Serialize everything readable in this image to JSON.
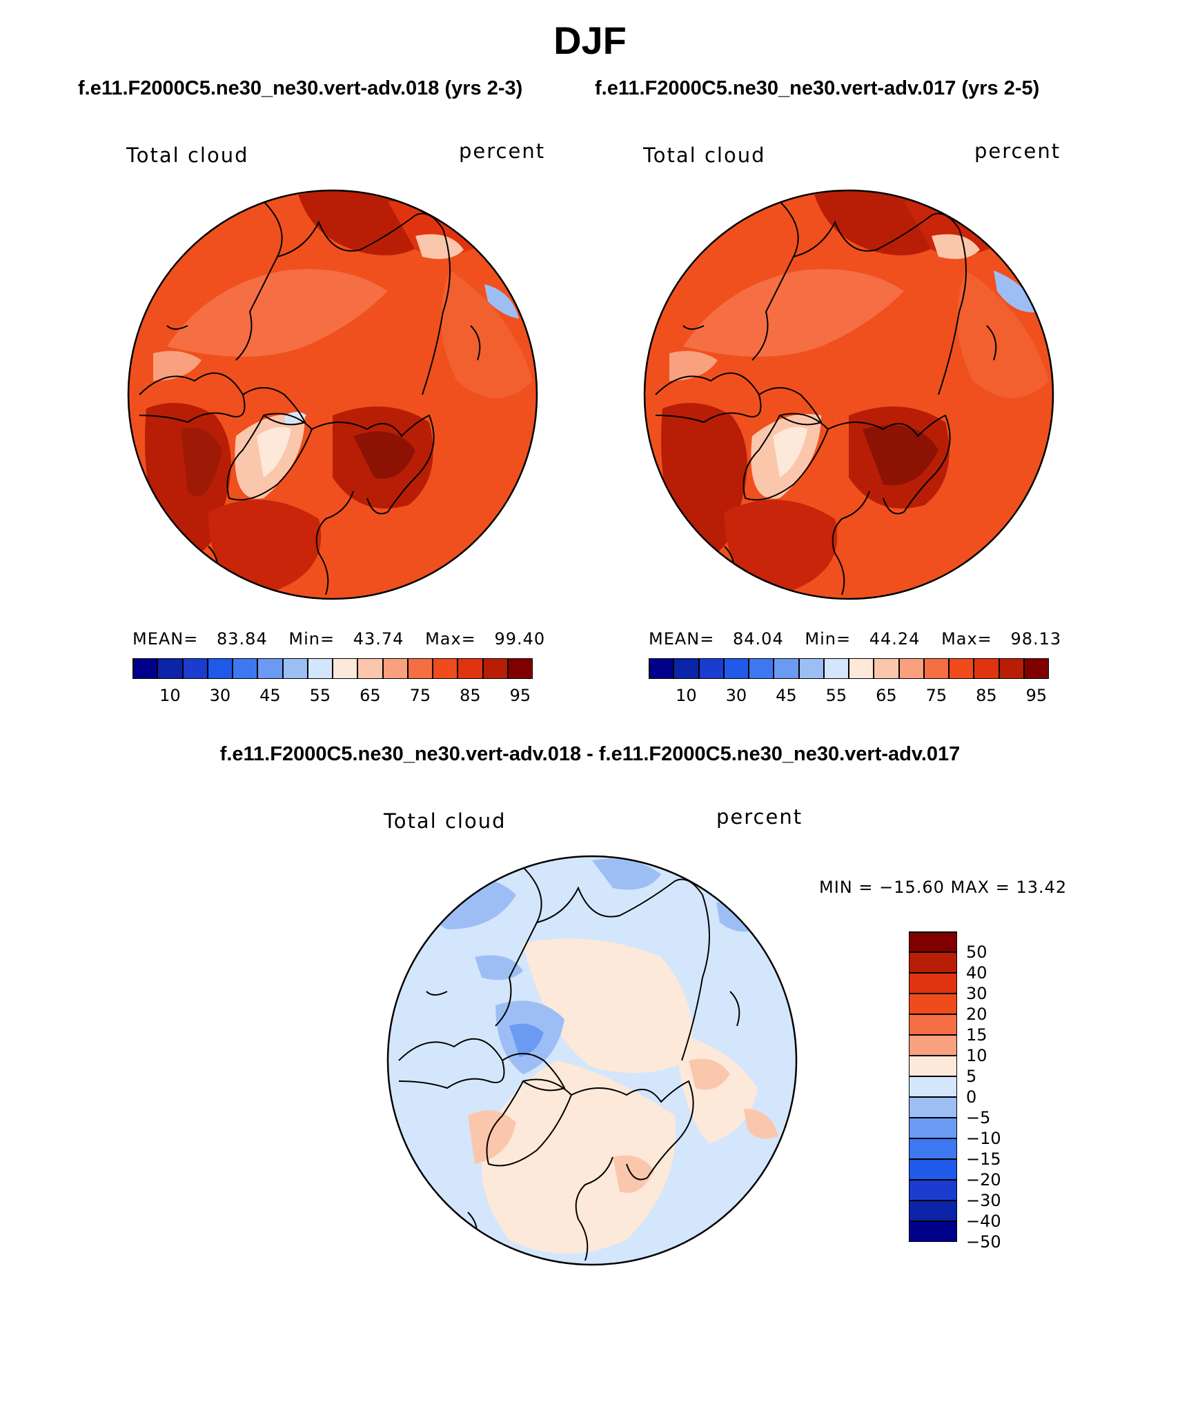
{
  "figure": {
    "season": "DJF",
    "case_titles": [
      "f.e11.F2000C5.ne30_ne30.vert-adv.018 (yrs 2-3)",
      "f.e11.F2000C5.ne30_ne30.vert-adv.017 (yrs 2-5)"
    ],
    "diff_title": "f.e11.F2000C5.ne30_ne30.vert-adv.018 - f.e11.F2000C5.ne30_ne30.vert-adv.017"
  },
  "panels": [
    {
      "variable": "Total cloud",
      "units": "percent",
      "stats": {
        "mean_label": "MEAN=",
        "mean": "83.84",
        "min_label": "Min=",
        "min": "43.74",
        "max_label": "Max=",
        "max": "99.40"
      }
    },
    {
      "variable": "Total cloud",
      "units": "percent",
      "stats": {
        "mean_label": "MEAN=",
        "mean": "84.04",
        "min_label": "Min=",
        "min": "44.24",
        "max_label": "Max=",
        "max": "98.13"
      }
    },
    {
      "variable": "Total cloud",
      "units": "percent",
      "minmax": "MIN = −15.60  MAX =   13.42"
    }
  ],
  "colorbar_abs": {
    "colors": [
      "#00008b",
      "#0b24a8",
      "#1a3ccf",
      "#1f5ae8",
      "#3e78f0",
      "#6b9af2",
      "#9dbef5",
      "#d4e6fb",
      "#fde9d9",
      "#fbc7ac",
      "#f9a17e",
      "#f56e44",
      "#ef4b1c",
      "#e03410",
      "#b81e06",
      "#800000"
    ],
    "tick_labels": [
      "10",
      "30",
      "45",
      "55",
      "65",
      "75",
      "85",
      "95"
    ]
  },
  "colorbar_diff": {
    "colors": [
      "#800000",
      "#b81e06",
      "#e03410",
      "#ef4b1c",
      "#f56e44",
      "#f9a17e",
      "#fde9d9",
      "#d4e6fb",
      "#9dbef5",
      "#6b9af2",
      "#3e78f0",
      "#1f5ae8",
      "#1a3ccf",
      "#0b24a8",
      "#00008b"
    ],
    "tick_labels": [
      "50",
      "40",
      "30",
      "20",
      "15",
      "10",
      "5",
      "0",
      "−5",
      "−10",
      "−15",
      "−20",
      "−30",
      "−40",
      "−50"
    ]
  }
}
